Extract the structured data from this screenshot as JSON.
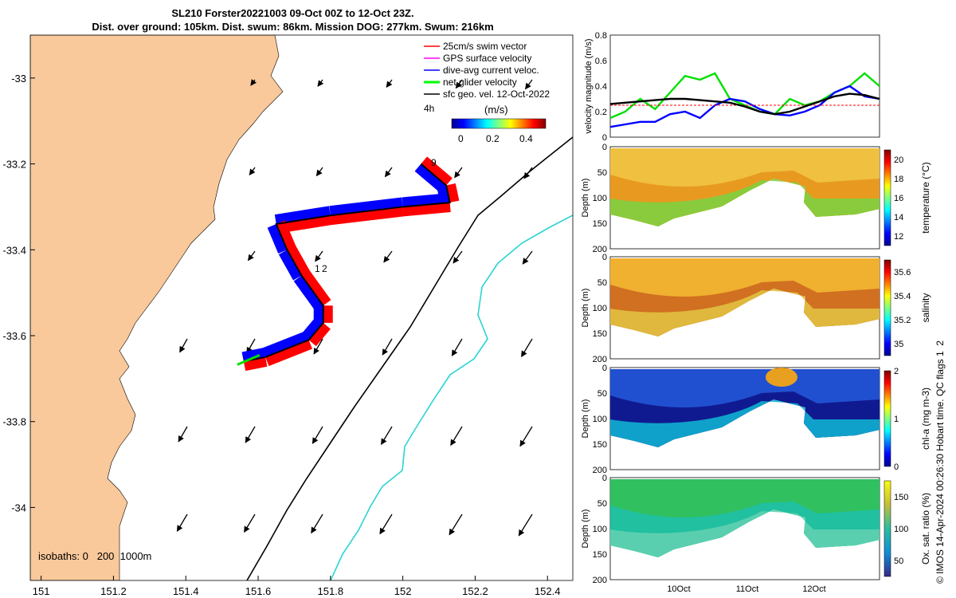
{
  "title": {
    "line1": "SL210 Forster20221003 09-Oct 00Z to 12-Oct 23Z.",
    "line2": "Dist. over ground: 105km. Dist. swum: 86km. Mission DOG: 277km. Swum: 216km"
  },
  "legend": {
    "items": [
      {
        "label": "25cm/s swim vector",
        "color": "#ff0000"
      },
      {
        "label": "GPS surface velocity",
        "color": "#ff00ff"
      },
      {
        "label": "dive-avg current veloc.",
        "color": "#0000ff"
      },
      {
        "label": "net glider velocity",
        "color": "#00ff00"
      },
      {
        "label": "sfc geo. vel. 12-Oct-2022",
        "color": "#000000"
      }
    ],
    "time_step": "4h",
    "colorbar_label": "(m/s)",
    "colorbar_ticks": [
      "0",
      "0.2",
      "0.4"
    ]
  },
  "map_labels": {
    "isobaths": "isobaths: 0   200  1000m",
    "day_marks": [
      "9",
      "1",
      "2"
    ]
  },
  "credit": "© IMOS 14-Apr-2024 00:26:30 Hobart time. QC flags 1  2",
  "chart_data": [
    {
      "type": "map",
      "xlabel_ticks": [
        "151",
        "151.2",
        "151.4",
        "151.6",
        "151.8",
        "152",
        "152.2",
        "152.4"
      ],
      "ylabel_ticks": [
        "-33",
        "-33.2",
        "-33.4",
        "-33.6",
        "-33.8",
        "-34"
      ],
      "xlim": [
        150.97,
        152.47
      ],
      "ylim": [
        -34.17,
        -32.9
      ],
      "track": [
        [
          152.05,
          -33.2
        ],
        [
          152.12,
          -33.25
        ],
        [
          152.13,
          -33.29
        ],
        [
          152.0,
          -33.3
        ],
        [
          151.8,
          -33.32
        ],
        [
          151.65,
          -33.34
        ],
        [
          151.68,
          -33.4
        ],
        [
          151.72,
          -33.46
        ],
        [
          151.78,
          -33.53
        ],
        [
          151.78,
          -33.57
        ],
        [
          151.74,
          -33.61
        ],
        [
          151.62,
          -33.65
        ],
        [
          151.56,
          -33.66
        ]
      ]
    },
    {
      "type": "line",
      "ylabel": "velocity magnitude (m/s)",
      "ylim": [
        0,
        0.8
      ],
      "y_ticks": [
        "0",
        "0.2",
        "0.4",
        "0.6",
        "0.8"
      ],
      "series": [
        {
          "name": "net glider velocity",
          "color": "#00e000",
          "values": [
            0.15,
            0.2,
            0.3,
            0.22,
            0.35,
            0.48,
            0.45,
            0.5,
            0.3,
            0.25,
            0.2,
            0.18,
            0.3,
            0.25,
            0.28,
            0.35,
            0.4,
            0.5,
            0.4
          ]
        },
        {
          "name": "dive-avg current veloc.",
          "color": "#0000ff",
          "values": [
            0.08,
            0.1,
            0.12,
            0.12,
            0.18,
            0.2,
            0.15,
            0.25,
            0.3,
            0.28,
            0.22,
            0.18,
            0.17,
            0.2,
            0.25,
            0.35,
            0.4,
            0.32,
            0.3
          ]
        },
        {
          "name": "swim speed",
          "color": "#ff0000",
          "values": [
            0.25,
            0.25,
            0.25,
            0.25,
            0.25,
            0.25,
            0.25,
            0.25,
            0.25,
            0.25,
            0.25,
            0.25,
            0.25,
            0.25,
            0.25,
            0.25,
            0.25,
            0.25,
            0.25
          ]
        },
        {
          "name": "sfc geo. vel.",
          "color": "#000000",
          "values": [
            0.26,
            0.27,
            0.28,
            0.29,
            0.3,
            0.3,
            0.29,
            0.28,
            0.27,
            0.24,
            0.2,
            0.18,
            0.2,
            0.24,
            0.28,
            0.32,
            0.34,
            0.33,
            0.3
          ]
        }
      ]
    },
    {
      "type": "heatmap",
      "ylabel": "Depth (m)",
      "clabel": "temperature (°C)",
      "y_ticks": [
        "0",
        "50",
        "100",
        "150",
        "200"
      ],
      "c_ticks": [
        "20",
        "18",
        "16",
        "14",
        "12"
      ],
      "crange": [
        11,
        21
      ]
    },
    {
      "type": "heatmap",
      "ylabel": "Depth (m)",
      "clabel": "salinity",
      "y_ticks": [
        "0",
        "50",
        "100",
        "150",
        "200"
      ],
      "c_ticks": [
        "35.6",
        "35.4",
        "35.2",
        "35"
      ],
      "crange": [
        34.9,
        35.7
      ]
    },
    {
      "type": "heatmap",
      "ylabel": "Depth (m)",
      "clabel": "chl-a (mg m-3)",
      "y_ticks": [
        "0",
        "50",
        "100",
        "150",
        "200"
      ],
      "c_ticks": [
        "2",
        "1",
        "0"
      ],
      "crange": [
        0,
        2
      ]
    },
    {
      "type": "heatmap",
      "ylabel": "Depth (m)",
      "clabel": "Ox. sat. ratio (%)",
      "y_ticks": [
        "0",
        "50",
        "100",
        "150",
        "200"
      ],
      "c_ticks": [
        "150",
        "100",
        "50"
      ],
      "crange": [
        25,
        175
      ],
      "x_ticks": [
        "10Oct",
        "11Oct",
        "12Oct"
      ]
    }
  ]
}
